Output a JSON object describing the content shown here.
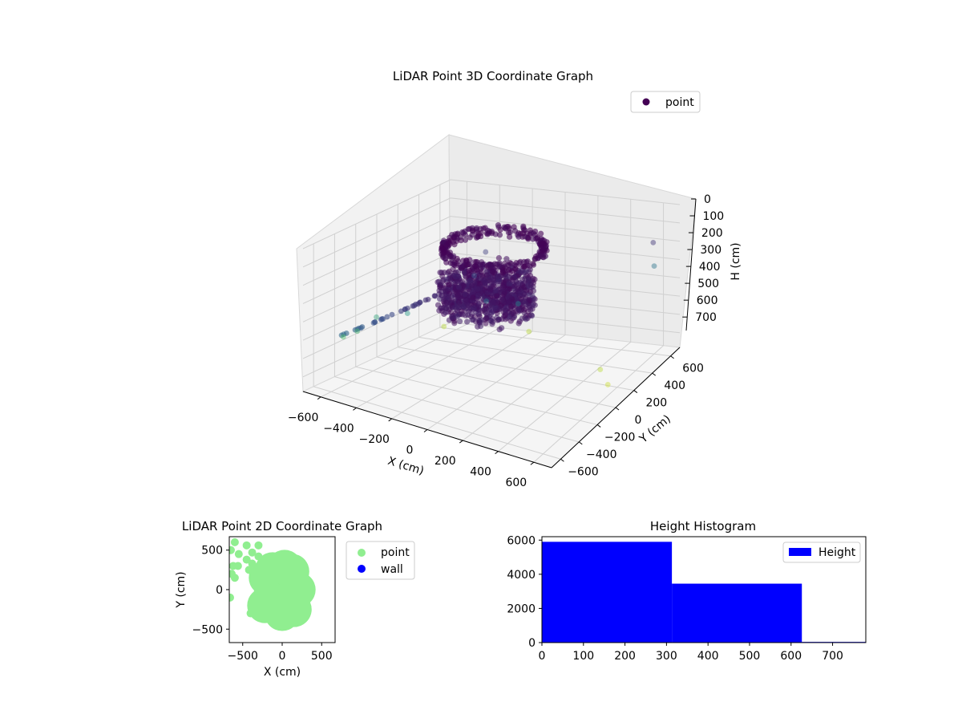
{
  "chart_data": [
    {
      "type": "scatter",
      "projection": "3d",
      "title": "LiDAR Point 3D Coordinate Graph",
      "xlabel": "X (cm)",
      "ylabel": "Y (cm)",
      "zlabel": "H (cm)",
      "xlim": [
        -700,
        700
      ],
      "ylim": [
        -700,
        700
      ],
      "zlim": [
        0,
        780
      ],
      "zaxis_inverted": true,
      "xticks": [
        -600,
        -400,
        -200,
        0,
        200,
        400,
        600
      ],
      "yticks": [
        -600,
        -400,
        -200,
        0,
        200,
        400,
        600
      ],
      "zticks": [
        0,
        100,
        200,
        300,
        400,
        500,
        600,
        700
      ],
      "colormap": "viridis",
      "legend": {
        "entries": [
          "point"
        ],
        "placement": "upper-right"
      },
      "series": [
        {
          "name": "point",
          "color": "#440154",
          "description_points": [
            {
              "x": -150,
              "y": 150,
              "h": 150
            },
            {
              "x": -100,
              "y": -50,
              "h": 200
            },
            {
              "x": 100,
              "y": 50,
              "h": 350
            },
            {
              "x": 0,
              "y": -100,
              "h": 300
            },
            {
              "x": -400,
              "y": -200,
              "h": 420
            },
            {
              "x": -550,
              "y": -250,
              "h": 460
            },
            {
              "x": -600,
              "y": -350,
              "h": 520
            },
            {
              "x": -650,
              "y": -400,
              "h": 550
            },
            {
              "x": 600,
              "y": 600,
              "h": 300
            },
            {
              "x": 650,
              "y": 500,
              "h": 120
            },
            {
              "x": -550,
              "y": 400,
              "h": 700
            },
            {
              "x": -100,
              "y": 500,
              "h": 700
            },
            {
              "x": 500,
              "y": 200,
              "h": 700
            },
            {
              "x": 600,
              "y": 100,
              "h": 720
            }
          ]
        }
      ]
    },
    {
      "type": "scatter",
      "title": "LiDAR Point 2D Coordinate Graph",
      "xlabel": "X (cm)",
      "ylabel": "Y (cm)",
      "xlim": [
        -670,
        670
      ],
      "ylim": [
        -670,
        670
      ],
      "xticks": [
        -500,
        0,
        500
      ],
      "yticks": [
        -500,
        0,
        500
      ],
      "legend": {
        "entries": [
          "point",
          "wall"
        ],
        "placement": "outside-right"
      },
      "series": [
        {
          "name": "point",
          "color": "#90ee90",
          "points": [
            [
              -100,
              0
            ],
            [
              -50,
              50
            ],
            [
              0,
              -50
            ],
            [
              50,
              100
            ],
            [
              100,
              -100
            ],
            [
              -150,
              -100
            ],
            [
              150,
              50
            ],
            [
              -200,
              150
            ],
            [
              -120,
              250
            ],
            [
              30,
              280
            ],
            [
              120,
              230
            ],
            [
              200,
              0
            ],
            [
              -220,
              -200
            ],
            [
              0,
              -300
            ],
            [
              150,
              -250
            ],
            [
              -600,
              600
            ],
            [
              -650,
              500
            ],
            [
              -550,
              450
            ],
            [
              -450,
              560
            ],
            [
              -380,
              470
            ],
            [
              -300,
              560
            ],
            [
              -450,
              380
            ],
            [
              -620,
              300
            ],
            [
              -560,
              300
            ],
            [
              -640,
              200
            ],
            [
              -600,
              150
            ],
            [
              -660,
              -100
            ],
            [
              -420,
              250
            ],
            [
              -380,
              330
            ],
            [
              -300,
              420
            ],
            [
              -400,
              -300
            ]
          ]
        },
        {
          "name": "wall",
          "color": "#0000ff",
          "points": []
        }
      ]
    },
    {
      "type": "bar",
      "title": "Height Histogram",
      "xlabel": "",
      "ylabel": "",
      "bins": [
        [
          0,
          313
        ],
        [
          313,
          626
        ],
        [
          626,
          940
        ]
      ],
      "values": [
        5900,
        3450,
        40
      ],
      "xlim": [
        0,
        780
      ],
      "ylim": [
        0,
        6200
      ],
      "xticks": [
        0,
        100,
        200,
        300,
        400,
        500,
        600,
        700
      ],
      "yticks": [
        0,
        2000,
        4000,
        6000
      ],
      "legend": {
        "entries": [
          "Height"
        ],
        "placement": "upper-right"
      },
      "series": [
        {
          "name": "Height",
          "color": "#0000ff"
        }
      ]
    }
  ]
}
